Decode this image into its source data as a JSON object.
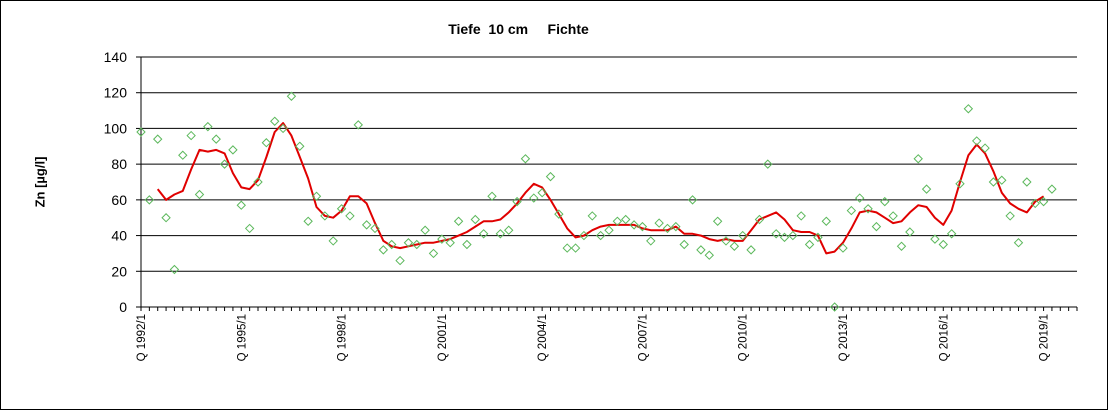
{
  "chart_data": {
    "type": "line",
    "title": "Tiefe  10 cm     Fichte",
    "xlabel": "",
    "ylabel": "Zn [µg/l]",
    "ylim": [
      0,
      140
    ],
    "yticks": [
      0,
      20,
      40,
      60,
      80,
      100,
      120,
      140
    ],
    "grid": true,
    "legend": "none",
    "x_range": [
      "Q 1992/1",
      "Q 2019/4"
    ],
    "x_tick_labels": [
      "Q 1992/1",
      "Q 1995/1",
      "Q 1998/1",
      "Q 2001/1",
      "Q 2004/1",
      "Q 2007/1",
      "Q 2010/1",
      "Q 2013/1",
      "Q 2016/1",
      "Q 2019/1"
    ],
    "colors": {
      "line": "#e00000",
      "markers": "#5cb85c",
      "grid": "#000000"
    },
    "series": [
      {
        "kind": "scatter",
        "marker": "diamond",
        "points": [
          [
            "1992/1",
            98
          ],
          [
            "1992/2",
            60
          ],
          [
            "1992/3",
            94
          ],
          [
            "1992/4",
            50
          ],
          [
            "1993/1",
            21
          ],
          [
            "1993/2",
            85
          ],
          [
            "1993/3",
            96
          ],
          [
            "1993/4",
            63
          ],
          [
            "1994/1",
            101
          ],
          [
            "1994/2",
            94
          ],
          [
            "1994/3",
            80
          ],
          [
            "1994/4",
            88
          ],
          [
            "1995/1",
            57
          ],
          [
            "1995/2",
            44
          ],
          [
            "1995/3",
            70
          ],
          [
            "1995/4",
            92
          ],
          [
            "1996/1",
            104
          ],
          [
            "1996/2",
            100
          ],
          [
            "1996/3",
            118
          ],
          [
            "1996/4",
            90
          ],
          [
            "1997/1",
            48
          ],
          [
            "1997/2",
            62
          ],
          [
            "1997/3",
            51
          ],
          [
            "1997/4",
            37
          ],
          [
            "1998/1",
            55
          ],
          [
            "1998/2",
            51
          ],
          [
            "1998/3",
            102
          ],
          [
            "1998/4",
            46
          ],
          [
            "1999/1",
            44
          ],
          [
            "1999/2",
            32
          ],
          [
            "1999/3",
            35
          ],
          [
            "1999/4",
            26
          ],
          [
            "2000/1",
            36
          ],
          [
            "2000/2",
            35
          ],
          [
            "2000/3",
            43
          ],
          [
            "2000/4",
            30
          ],
          [
            "2001/1",
            38
          ],
          [
            "2001/2",
            36
          ],
          [
            "2001/3",
            48
          ],
          [
            "2001/4",
            35
          ],
          [
            "2002/1",
            49
          ],
          [
            "2002/2",
            41
          ],
          [
            "2002/3",
            62
          ],
          [
            "2002/4",
            41
          ],
          [
            "2003/1",
            43
          ],
          [
            "2003/2",
            59
          ],
          [
            "2003/3",
            83
          ],
          [
            "2003/4",
            61
          ],
          [
            "2004/1",
            64
          ],
          [
            "2004/2",
            73
          ],
          [
            "2004/3",
            52
          ],
          [
            "2004/4",
            33
          ],
          [
            "2005/1",
            33
          ],
          [
            "2005/2",
            40
          ],
          [
            "2005/3",
            51
          ],
          [
            "2005/4",
            40
          ],
          [
            "2006/1",
            43
          ],
          [
            "2006/2",
            48
          ],
          [
            "2006/3",
            49
          ],
          [
            "2006/4",
            46
          ],
          [
            "2007/1",
            45
          ],
          [
            "2007/2",
            37
          ],
          [
            "2007/3",
            47
          ],
          [
            "2007/4",
            44
          ],
          [
            "2008/1",
            45
          ],
          [
            "2008/2",
            35
          ],
          [
            "2008/3",
            60
          ],
          [
            "2008/4",
            32
          ],
          [
            "2009/1",
            29
          ],
          [
            "2009/2",
            48
          ],
          [
            "2009/3",
            37
          ],
          [
            "2009/4",
            34
          ],
          [
            "2010/1",
            40
          ],
          [
            "2010/2",
            32
          ],
          [
            "2010/3",
            49
          ],
          [
            "2010/4",
            80
          ],
          [
            "2011/1",
            41
          ],
          [
            "2011/2",
            39
          ],
          [
            "2011/3",
            40
          ],
          [
            "2011/4",
            51
          ],
          [
            "2012/1",
            35
          ],
          [
            "2012/2",
            39
          ],
          [
            "2012/3",
            48
          ],
          [
            "2012/4",
            0
          ],
          [
            "2013/1",
            33
          ],
          [
            "2013/2",
            54
          ],
          [
            "2013/3",
            61
          ],
          [
            "2013/4",
            55
          ],
          [
            "2014/1",
            45
          ],
          [
            "2014/2",
            59
          ],
          [
            "2014/3",
            51
          ],
          [
            "2014/4",
            34
          ],
          [
            "2015/1",
            42
          ],
          [
            "2015/2",
            83
          ],
          [
            "2015/3",
            66
          ],
          [
            "2015/4",
            38
          ],
          [
            "2016/1",
            35
          ],
          [
            "2016/2",
            41
          ],
          [
            "2016/3",
            69
          ],
          [
            "2016/4",
            111
          ],
          [
            "2017/1",
            93
          ],
          [
            "2017/2",
            89
          ],
          [
            "2017/3",
            70
          ],
          [
            "2017/4",
            71
          ],
          [
            "2018/1",
            51
          ],
          [
            "2018/2",
            36
          ],
          [
            "2018/3",
            70
          ],
          [
            "2018/4",
            58
          ],
          [
            "2019/1",
            59
          ],
          [
            "2019/2",
            66
          ]
        ]
      },
      {
        "kind": "line",
        "points": [
          [
            "1992/3",
            66
          ],
          [
            "1992/4",
            60
          ],
          [
            "1993/1",
            63
          ],
          [
            "1993/2",
            65
          ],
          [
            "1993/3",
            77
          ],
          [
            "1993/4",
            88
          ],
          [
            "1994/1",
            87
          ],
          [
            "1994/2",
            88
          ],
          [
            "1994/3",
            86
          ],
          [
            "1994/4",
            75
          ],
          [
            "1995/1",
            67
          ],
          [
            "1995/2",
            66
          ],
          [
            "1995/3",
            71
          ],
          [
            "1995/4",
            84
          ],
          [
            "1996/1",
            98
          ],
          [
            "1996/2",
            103
          ],
          [
            "1996/3",
            96
          ],
          [
            "1996/4",
            84
          ],
          [
            "1997/1",
            72
          ],
          [
            "1997/2",
            56
          ],
          [
            "1997/3",
            51
          ],
          [
            "1997/4",
            50
          ],
          [
            "1998/1",
            54
          ],
          [
            "1998/2",
            62
          ],
          [
            "1998/3",
            62
          ],
          [
            "1998/4",
            58
          ],
          [
            "1999/1",
            47
          ],
          [
            "1999/2",
            37
          ],
          [
            "1999/3",
            34
          ],
          [
            "1999/4",
            33
          ],
          [
            "2000/1",
            34
          ],
          [
            "2000/2",
            35
          ],
          [
            "2000/3",
            36
          ],
          [
            "2000/4",
            36
          ],
          [
            "2001/1",
            37
          ],
          [
            "2001/2",
            38
          ],
          [
            "2001/3",
            40
          ],
          [
            "2001/4",
            42
          ],
          [
            "2002/1",
            45
          ],
          [
            "2002/2",
            48
          ],
          [
            "2002/3",
            48
          ],
          [
            "2002/4",
            49
          ],
          [
            "2003/1",
            53
          ],
          [
            "2003/2",
            58
          ],
          [
            "2003/3",
            64
          ],
          [
            "2003/4",
            69
          ],
          [
            "2004/1",
            67
          ],
          [
            "2004/2",
            60
          ],
          [
            "2004/3",
            52
          ],
          [
            "2004/4",
            44
          ],
          [
            "2005/1",
            39
          ],
          [
            "2005/2",
            40
          ],
          [
            "2005/3",
            43
          ],
          [
            "2005/4",
            45
          ],
          [
            "2006/1",
            46
          ],
          [
            "2006/2",
            46
          ],
          [
            "2006/3",
            46
          ],
          [
            "2006/4",
            46
          ],
          [
            "2007/1",
            44
          ],
          [
            "2007/2",
            43
          ],
          [
            "2007/3",
            43
          ],
          [
            "2007/4",
            43
          ],
          [
            "2008/1",
            45
          ],
          [
            "2008/2",
            41
          ],
          [
            "2008/3",
            41
          ],
          [
            "2008/4",
            40
          ],
          [
            "2009/1",
            38
          ],
          [
            "2009/2",
            37
          ],
          [
            "2009/3",
            38
          ],
          [
            "2009/4",
            37
          ],
          [
            "2010/1",
            37
          ],
          [
            "2010/2",
            43
          ],
          [
            "2010/3",
            49
          ],
          [
            "2010/4",
            51
          ],
          [
            "2011/1",
            53
          ],
          [
            "2011/2",
            49
          ],
          [
            "2011/3",
            43
          ],
          [
            "2011/4",
            42
          ],
          [
            "2012/1",
            42
          ],
          [
            "2012/2",
            40
          ],
          [
            "2012/3",
            30
          ],
          [
            "2012/4",
            31
          ],
          [
            "2013/1",
            36
          ],
          [
            "2013/2",
            44
          ],
          [
            "2013/3",
            53
          ],
          [
            "2013/4",
            54
          ],
          [
            "2014/1",
            53
          ],
          [
            "2014/2",
            50
          ],
          [
            "2014/3",
            47
          ],
          [
            "2014/4",
            48
          ],
          [
            "2015/1",
            53
          ],
          [
            "2015/2",
            57
          ],
          [
            "2015/3",
            56
          ],
          [
            "2015/4",
            50
          ],
          [
            "2016/1",
            46
          ],
          [
            "2016/2",
            54
          ],
          [
            "2016/3",
            70
          ],
          [
            "2016/4",
            85
          ],
          [
            "2017/1",
            91
          ],
          [
            "2017/2",
            86
          ],
          [
            "2017/3",
            76
          ],
          [
            "2017/4",
            64
          ],
          [
            "2018/1",
            58
          ],
          [
            "2018/2",
            55
          ],
          [
            "2018/3",
            53
          ],
          [
            "2018/4",
            59
          ],
          [
            "2019/1",
            62
          ]
        ]
      }
    ]
  }
}
